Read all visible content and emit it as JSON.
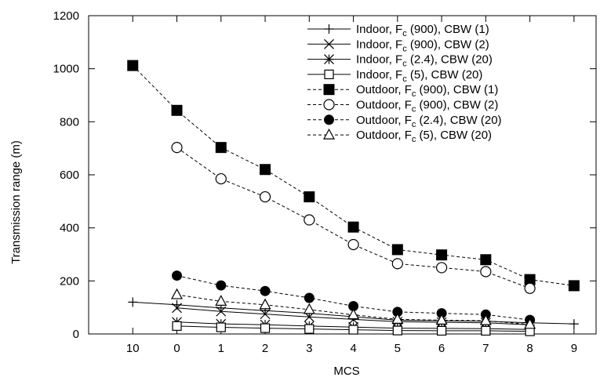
{
  "chart_data": {
    "type": "line",
    "xlabel": "MCS",
    "ylabel": "Transmission range (m)",
    "categories": [
      "10",
      "0",
      "1",
      "2",
      "3",
      "4",
      "5",
      "6",
      "7",
      "8",
      "9"
    ],
    "ylim": [
      0,
      1200
    ],
    "yticks": [
      0,
      200,
      400,
      600,
      800,
      1000,
      1200
    ],
    "grid": false,
    "legend_position": "top-right",
    "series": [
      {
        "name": "Indoor, Fc (900), CBW (1)",
        "legend": {
          "pre": "Indoor, F",
          "sub": "c",
          "post": " (900), CBW (1)"
        },
        "marker": "plus",
        "line": "solid",
        "values": [
          120,
          110,
          98,
          88,
          78,
          65,
          52,
          50,
          48,
          42,
          38
        ]
      },
      {
        "name": "Indoor, Fc (900), CBW (2)",
        "legend": {
          "pre": "Indoor, F",
          "sub": "c",
          "post": " (900), CBW (2)"
        },
        "marker": "cross",
        "line": "solid",
        "values": [
          null,
          98,
          85,
          75,
          64,
          55,
          46,
          44,
          42,
          35,
          null
        ]
      },
      {
        "name": "Indoor, Fc (2.4), CBW (20)",
        "legend": {
          "pre": "Indoor, F",
          "sub": "c",
          "post": " (2.4), CBW (20)"
        },
        "marker": "star",
        "line": "solid",
        "values": [
          null,
          45,
          38,
          35,
          30,
          26,
          22,
          21,
          20,
          17,
          null
        ]
      },
      {
        "name": "Indoor, Fc (5), CBW (20)",
        "legend": {
          "pre": "Indoor, F",
          "sub": "c",
          "post": " (5), CBW (20)"
        },
        "marker": "square-open",
        "line": "solid",
        "values": [
          null,
          30,
          25,
          22,
          19,
          16,
          13,
          12,
          12,
          10,
          null
        ]
      },
      {
        "name": "Outdoor, Fc (900), CBW (1)",
        "legend": {
          "pre": "Outdoor, F",
          "sub": "c",
          "post": " (900), CBW (1)"
        },
        "marker": "square-filled",
        "line": "dashed",
        "values": [
          1012,
          843,
          703,
          620,
          517,
          403,
          318,
          298,
          280,
          205,
          182
        ]
      },
      {
        "name": "Outdoor, Fc (900), CBW (2)",
        "legend": {
          "pre": "Outdoor, F",
          "sub": "c",
          "post": " (900), CBW (2)"
        },
        "marker": "circle-open",
        "line": "dashed",
        "values": [
          null,
          703,
          585,
          517,
          430,
          337,
          265,
          250,
          235,
          172,
          null
        ]
      },
      {
        "name": "Outdoor, Fc (2.4), CBW (20)",
        "legend": {
          "pre": "Outdoor, F",
          "sub": "c",
          "post": " (2.4), CBW (20)"
        },
        "marker": "circle-filled",
        "line": "dashed",
        "values": [
          null,
          220,
          183,
          162,
          136,
          105,
          83,
          78,
          73,
          53,
          null
        ]
      },
      {
        "name": "Outdoor, Fc (5), CBW (20)",
        "legend": {
          "pre": "Outdoor, F",
          "sub": "c",
          "post": " (5), CBW (20)"
        },
        "marker": "triangle-open",
        "line": "dashed",
        "values": [
          null,
          148,
          123,
          110,
          92,
          72,
          55,
          52,
          50,
          36,
          null
        ]
      }
    ]
  }
}
